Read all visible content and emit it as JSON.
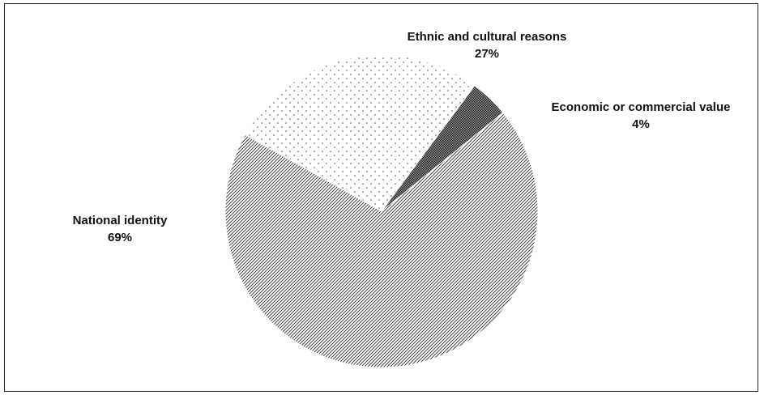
{
  "chart_data": {
    "type": "pie",
    "title": "",
    "series": [
      {
        "values": [
          69,
          27,
          4
        ],
        "categories": [
          "National identity",
          "Ethnic and cultural reasons",
          "Economic or commercial value"
        ]
      }
    ],
    "labels": [
      {
        "name": "National identity",
        "value_text": "69%"
      },
      {
        "name": "Ethnic and cultural reasons",
        "value_text": "27%"
      },
      {
        "name": "Economic or commercial value",
        "value_text": "4%"
      }
    ],
    "fills": [
      {
        "pattern": "diagonal-hatch",
        "color": "#2a2a2a"
      },
      {
        "pattern": "sparse-dots",
        "color": "#4a4a4a"
      },
      {
        "pattern": "dense-crosshatch",
        "color": "#1a1a1a"
      }
    ]
  }
}
